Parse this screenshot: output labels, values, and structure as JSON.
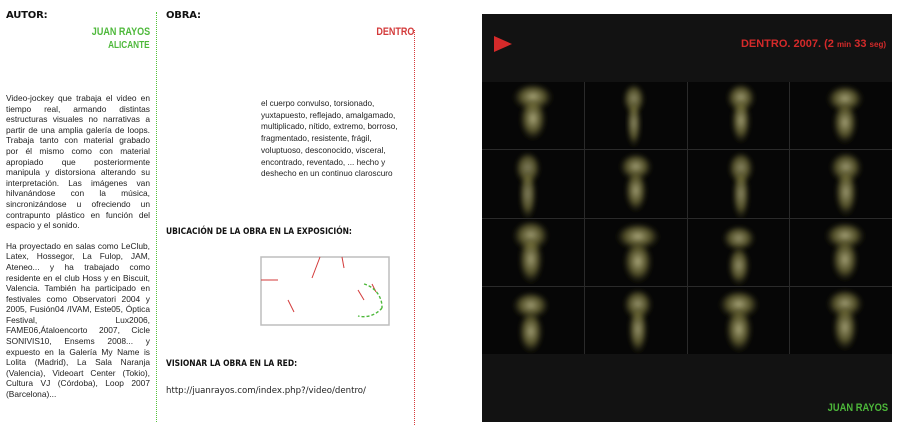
{
  "author": {
    "label": "AUTOR:",
    "name": "JUAN RAYOS",
    "city": "ALICANTE",
    "bio_p1": "Video-jockey que trabaja el video en tiempo real, armando distintas estructuras visuales no narrativas a partir de una amplia galería de loops. Trabaja tanto con material grabado por él mismo como con material apropiado que posteriormente manipula y distorsiona alterando su interpretación. Las imágenes van hilvanándose con la música, sincronizándose u ofreciendo un contrapunto plástico en función del espacio y el sonido.",
    "bio_p2": "Ha proyectado en salas como LeClub, Latex, Hossegor, La Fulop, JAM, Ateneo... y ha trabajado como residente en el club Hoss y en Biscuit, Valencia. También ha participado en festivales como Observatori 2004 y 2005, Fusión04 /IVAM, Este05, Óptica Festival, Lux2006, FAME06,Átaloencorto 2007, Cicle SONIVIS10, Ensems 2008... y expuesto en la Galería My Name is Lolita (Madrid), La Sala Naranja (Valencia), Videoart Center (Tokio), Cultura VJ (Córdoba), Loop 2007 (Barcelona)..."
  },
  "work": {
    "label": "OBRA:",
    "title": "DENTRO",
    "description": "el cuerpo convulso, torsionado, yuxtapuesto, reflejado, amalgamado, multiplicado, nítido, extremo, borroso, fragmentado, resistente, frágil, voluptuoso, desconocido, visceral, encontrado, reventado, ... hecho y deshecho en un continuo claroscuro",
    "location_heading": "UBICACIÓN DE LA OBRA EN LA EXPOSICIÓN:",
    "view_heading": "VISIONAR LA OBRA EN LA RED:",
    "url": "http://juanrayos.com/index.php?/video/dentro/"
  },
  "video": {
    "title": "DENTRO. 2007. (2",
    "duration_small": "min",
    "duration_mid": "33",
    "duration_small2": "seg)",
    "footer": "JUAN RAYOS",
    "play_icon": "play-icon",
    "accent_red": "#d52a2a",
    "accent_green": "#4db83a"
  }
}
